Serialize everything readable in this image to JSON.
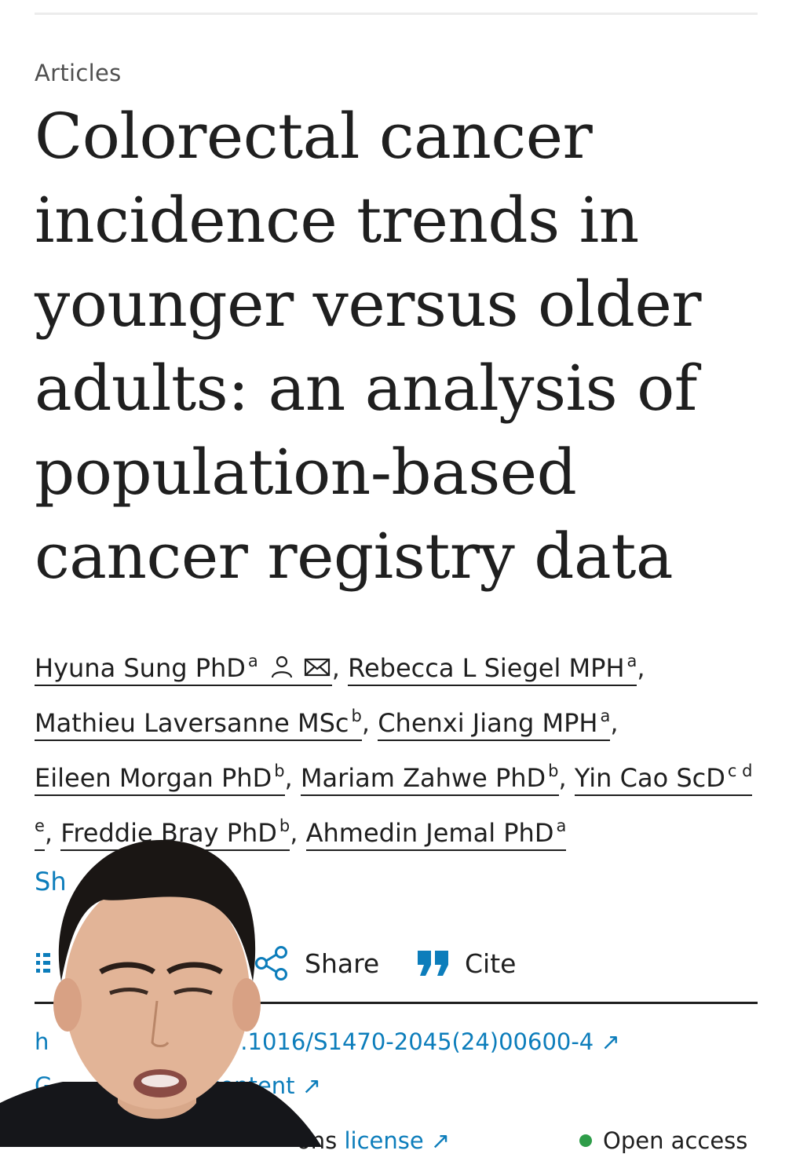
{
  "article": {
    "section_label": "Articles",
    "title": "Colorectal cancer incidence trends in younger versus older adults: an analysis of population-based cancer registry data",
    "authors": [
      {
        "name": "Hyuna Sung PhD",
        "affiliations": "a"
      },
      {
        "name": "Rebecca L Siegel MPH",
        "affiliations": "a"
      },
      {
        "name": "Mathieu Laversanne MSc",
        "affiliations": "b"
      },
      {
        "name": "Chenxi Jiang MPH",
        "affiliations": "a"
      },
      {
        "name": "Eileen Morgan PhD",
        "affiliations": "b"
      },
      {
        "name": "Mariam Zahwe PhD",
        "affiliations": "b"
      },
      {
        "name": "Yin Cao ScD",
        "affiliations": "c d e"
      },
      {
        "name": "Freddie Bray PhD",
        "affiliations": "b"
      },
      {
        "name": "Ahmedin Jemal PhD",
        "affiliations": "a"
      }
    ],
    "author_icons": [
      "person-icon",
      "envelope-icon"
    ],
    "show_more_label": "Sh",
    "toolbar": {
      "share_label": "Share",
      "cite_label": "Cite"
    },
    "doi_partial": "h",
    "doi_text": "10.1016/S1470-2045(24)00600-4",
    "rights_partial": "G",
    "rights_text": "content",
    "license_partial": "ons",
    "license_text": "license",
    "open_access_label": "Open access",
    "external_link_glyph": "↗"
  },
  "colors": {
    "link_blue": "#0c7dbb",
    "text": "#1f1f1f",
    "open_access_green": "#2e9d49"
  }
}
